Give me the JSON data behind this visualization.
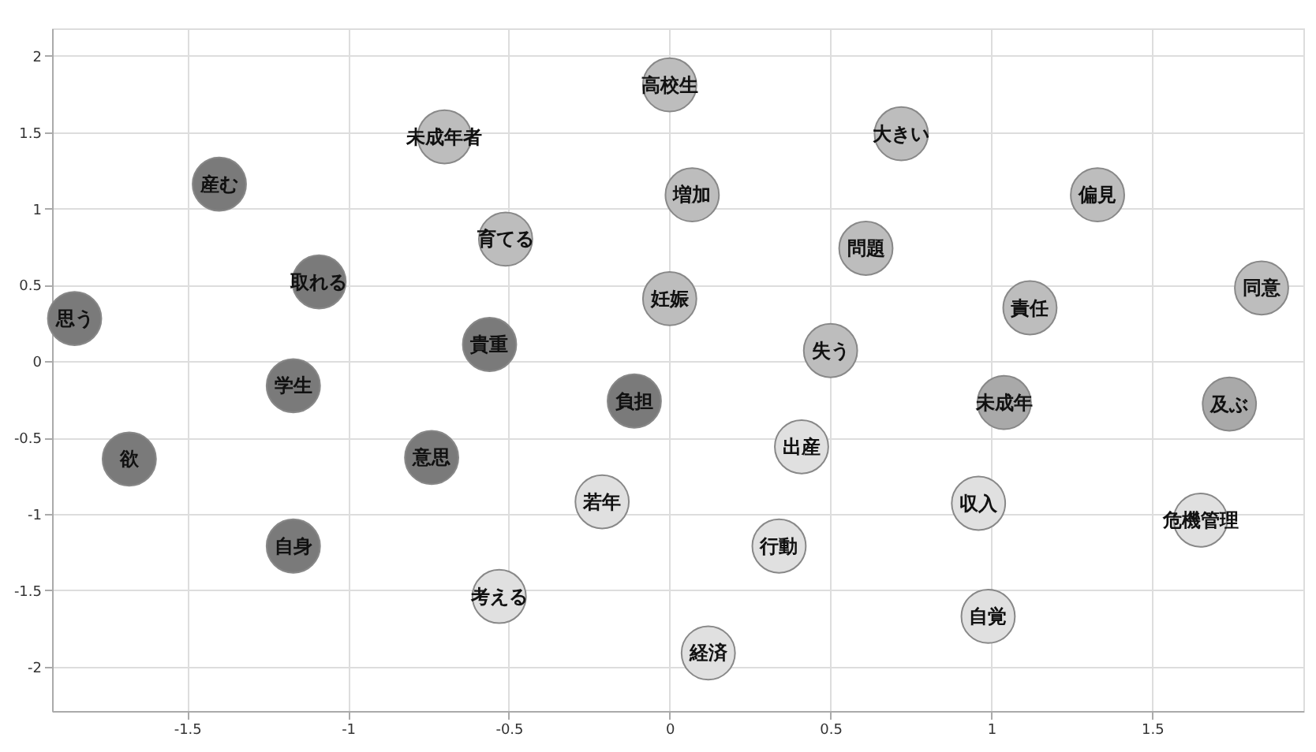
{
  "chart_data": {
    "type": "scatter",
    "marker": "circle",
    "grid": true,
    "xlim": [
      -1.92,
      1.97
    ],
    "xticks": [
      -1.5,
      -1,
      -0.5,
      0,
      0.5,
      1,
      1.5
    ],
    "ylim": [
      -2.29,
      2.18
    ],
    "yticks": [
      -2,
      -1.5,
      -1,
      -0.5,
      0,
      0.5,
      1,
      1.5,
      2
    ],
    "x": [
      -1.85,
      -1.68,
      -1.4,
      -1.17,
      -1.17,
      -1.09,
      -0.74,
      -0.56,
      -0.11,
      -0.7,
      -0.51,
      0.0,
      0.07,
      0.0,
      0.5,
      0.61,
      0.72,
      1.12,
      1.33,
      1.84,
      1.04,
      1.74,
      -0.53,
      -0.21,
      0.34,
      0.12,
      0.41,
      0.96,
      0.99,
      1.65
    ],
    "values": [
      0.28,
      -0.64,
      1.16,
      -0.16,
      -1.21,
      0.52,
      -0.63,
      0.11,
      -0.26,
      1.47,
      0.8,
      1.81,
      1.09,
      0.41,
      0.07,
      0.74,
      1.49,
      0.35,
      1.09,
      0.48,
      -0.27,
      -0.28,
      -1.54,
      -0.92,
      -1.21,
      -1.91,
      -0.56,
      -0.93,
      -1.67,
      -1.04
    ],
    "value_labels": [
      "思う",
      "欲",
      "産む",
      "学生",
      "自身",
      "取れる",
      "意思",
      "貴重",
      "負担",
      "未成年者",
      "育てる",
      "高校生",
      "増加",
      "妊娠",
      "失う",
      "問題",
      "大きい",
      "責任",
      "偏見",
      "同意",
      "未成年",
      "及ぶ",
      "考える",
      "若年",
      "行動",
      "経済",
      "出産",
      "収入",
      "自覚",
      "危機管理"
    ],
    "colors": [
      "#7a7a7a",
      "#7a7a7a",
      "#7a7a7a",
      "#7a7a7a",
      "#7a7a7a",
      "#7a7a7a",
      "#7a7a7a",
      "#7a7a7a",
      "#7a7a7a",
      "#bdbdbd",
      "#bdbdbd",
      "#bdbdbd",
      "#bdbdbd",
      "#bdbdbd",
      "#bdbdbd",
      "#bdbdbd",
      "#bdbdbd",
      "#bdbdbd",
      "#bdbdbd",
      "#bdbdbd",
      "#a9a9a9",
      "#a9a9a9",
      "#e0e0e0",
      "#e0e0e0",
      "#e0e0e0",
      "#e0e0e0",
      "#e0e0e0",
      "#e0e0e0",
      "#e0e0e0",
      "#e0e0e0"
    ]
  }
}
